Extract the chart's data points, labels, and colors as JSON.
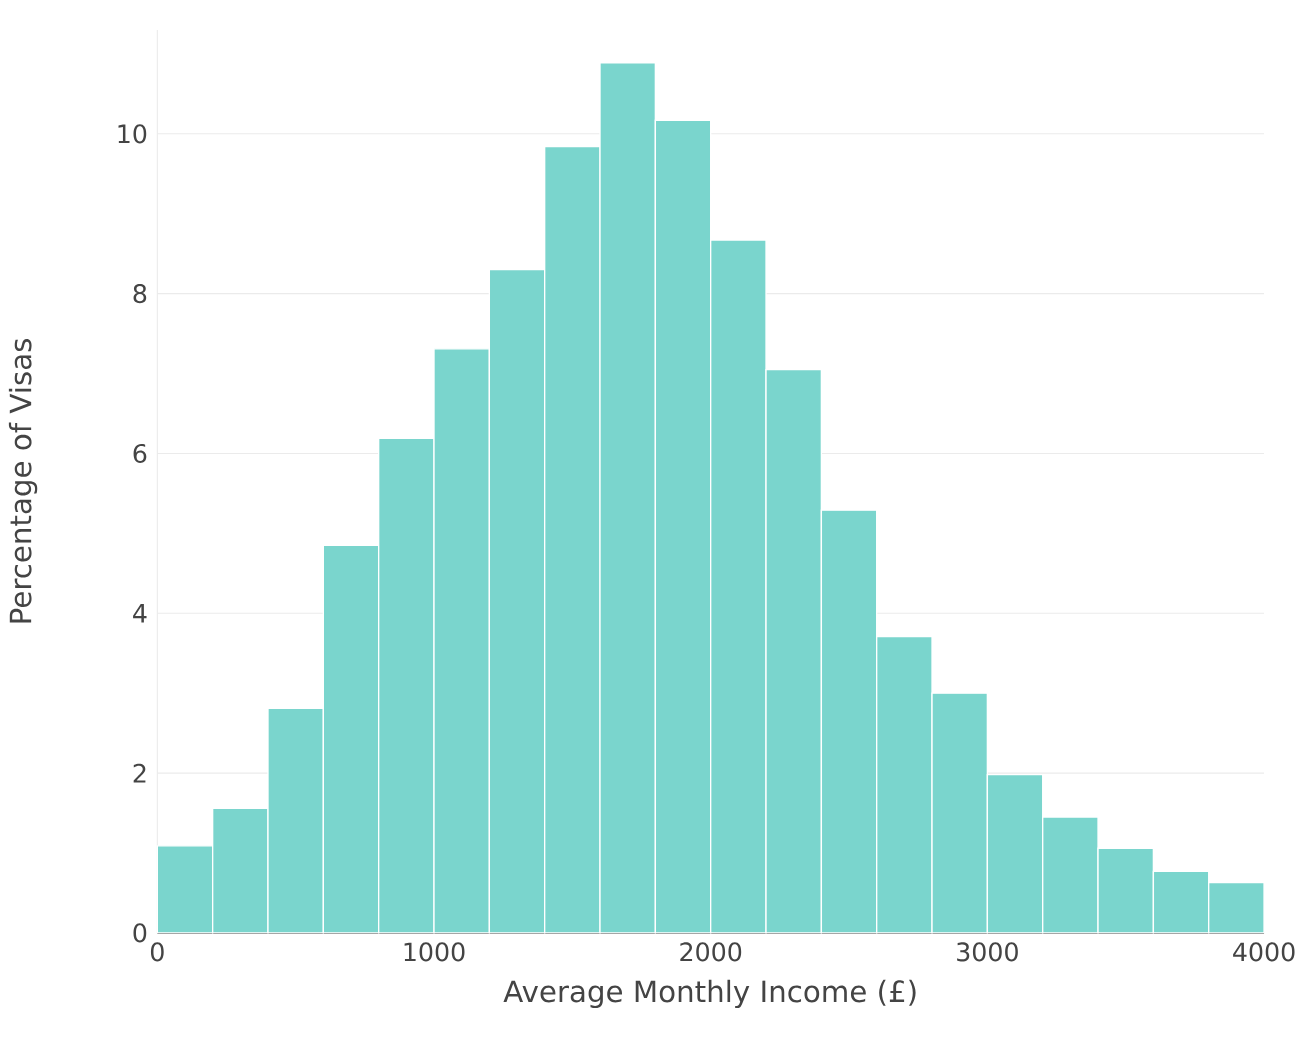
{
  "chart_data": {
    "type": "histogram",
    "xlabel": "Average Monthly Income (£)",
    "ylabel": "Percentage of Visas",
    "bins": [
      0,
      200,
      400,
      600,
      800,
      1000,
      1200,
      1400,
      1600,
      1800,
      2000,
      2200,
      2400,
      2600,
      2800,
      3000,
      3200,
      3400,
      3600,
      3800,
      4000
    ],
    "values": [
      1.09,
      1.56,
      2.81,
      4.85,
      6.19,
      7.31,
      8.3,
      9.84,
      10.89,
      10.17,
      8.67,
      7.05,
      5.29,
      3.71,
      3.0,
      1.98,
      1.45,
      1.06,
      0.77,
      0.63
    ],
    "color": "#7ad5cd",
    "xlim": [
      0,
      4000
    ],
    "ylim": [
      0,
      11.3
    ],
    "xticks": [
      0,
      1000,
      2000,
      3000,
      4000
    ],
    "yticks": [
      0,
      2,
      4,
      6,
      8,
      10
    ],
    "grid": "y"
  }
}
